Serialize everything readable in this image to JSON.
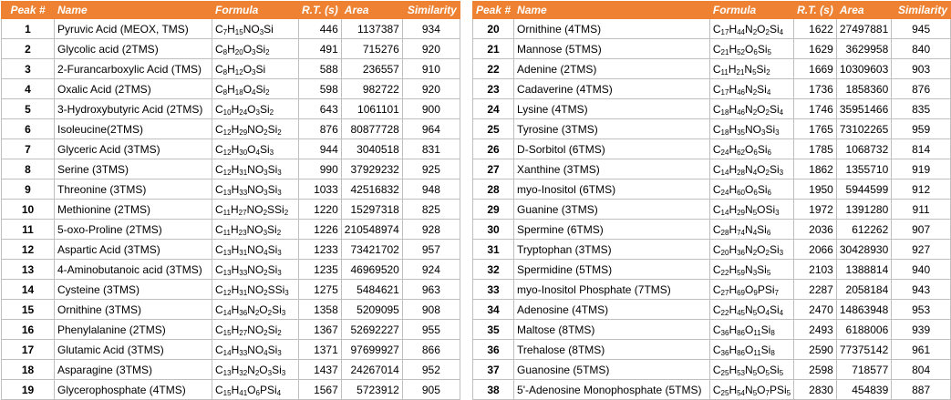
{
  "headers": [
    "Peak #",
    "Name",
    "Formula",
    "R.T. (s)",
    "Area",
    "Similarity"
  ],
  "left_rows": [
    {
      "peak": "1",
      "name": "Pyruvic Acid (MEOX, TMS)",
      "formula": "C7H15NO3Si",
      "rt": "446",
      "area": "1137387",
      "sim": "934"
    },
    {
      "peak": "2",
      "name": "Glycolic acid (2TMS)",
      "formula": "C8H20O3Si2",
      "rt": "491",
      "area": "715276",
      "sim": "920"
    },
    {
      "peak": "3",
      "name": "2-Furancarboxylic Acid (TMS)",
      "formula": "C8H12O3Si",
      "rt": "588",
      "area": "236557",
      "sim": "910"
    },
    {
      "peak": "4",
      "name": "Oxalic Acid (2TMS)",
      "formula": "C8H18O4Si2",
      "rt": "598",
      "area": "982722",
      "sim": "920"
    },
    {
      "peak": "5",
      "name": "3-Hydroxybutyric Acid (2TMS)",
      "formula": "C10H24O3Si2",
      "rt": "643",
      "area": "1061101",
      "sim": "900"
    },
    {
      "peak": "6",
      "name": "Isoleucine(2TMS)",
      "formula": "C12H29NO2Si2",
      "rt": "876",
      "area": "80877728",
      "sim": "964"
    },
    {
      "peak": "7",
      "name": "Glyceric Acid (3TMS)",
      "formula": "C12H30O4Si3",
      "rt": "944",
      "area": "3040518",
      "sim": "831"
    },
    {
      "peak": "8",
      "name": "Serine (3TMS)",
      "formula": "C12H31NO3Si3",
      "rt": "990",
      "area": "37929232",
      "sim": "925"
    },
    {
      "peak": "9",
      "name": "Threonine (3TMS)",
      "formula": "C13H33NO3Si3",
      "rt": "1033",
      "area": "42516832",
      "sim": "948"
    },
    {
      "peak": "10",
      "name": "Methionine (2TMS)",
      "formula": "C11H27NO2SSi2",
      "rt": "1220",
      "area": "15297318",
      "sim": "825"
    },
    {
      "peak": "11",
      "name": "5-oxo-Proline (2TMS)",
      "formula": "C11H23NO3Si2",
      "rt": "1226",
      "area": "210548974",
      "sim": "928"
    },
    {
      "peak": "12",
      "name": "Aspartic Acid (3TMS)",
      "formula": "C13H31NO4Si3",
      "rt": "1233",
      "area": "73421702",
      "sim": "957"
    },
    {
      "peak": "13",
      "name": "4-Aminobutanoic acid (3TMS)",
      "formula": "C13H33NO2Si3",
      "rt": "1235",
      "area": "46969520",
      "sim": "924"
    },
    {
      "peak": "14",
      "name": "Cysteine (3TMS)",
      "formula": "C12H31NO2SSi3",
      "rt": "1275",
      "area": "5484621",
      "sim": "963"
    },
    {
      "peak": "15",
      "name": "Ornithine (3TMS)",
      "formula": "C14H36N2O2Si3",
      "rt": "1358",
      "area": "5209095",
      "sim": "908"
    },
    {
      "peak": "16",
      "name": "Phenylalanine (2TMS)",
      "formula": "C15H27NO2Si2",
      "rt": "1367",
      "area": "52692227",
      "sim": "955"
    },
    {
      "peak": "17",
      "name": "Glutamic Acid (3TMS)",
      "formula": "C14H33NO4Si3",
      "rt": "1371",
      "area": "97699927",
      "sim": "866"
    },
    {
      "peak": "18",
      "name": "Asparagine (3TMS)",
      "formula": "C13H32N2O3Si3",
      "rt": "1437",
      "area": "24267014",
      "sim": "952"
    },
    {
      "peak": "19",
      "name": "Glycerophosphate (4TMS)",
      "formula": "C15H41O6PSi4",
      "rt": "1567",
      "area": "5723912",
      "sim": "905"
    }
  ],
  "right_rows": [
    {
      "peak": "20",
      "name": "Ornithine (4TMS)",
      "formula": "C17H44N2O2Si4",
      "rt": "1622",
      "area": "27497881",
      "sim": "945"
    },
    {
      "peak": "21",
      "name": "Mannose (5TMS)",
      "formula": "C21H52O6Si5",
      "rt": "1629",
      "area": "3629958",
      "sim": "840"
    },
    {
      "peak": "22",
      "name": "Adenine (2TMS)",
      "formula": "C11H21N5Si2",
      "rt": "1669",
      "area": "10309603",
      "sim": "903"
    },
    {
      "peak": "23",
      "name": "Cadaverine (4TMS)",
      "formula": "C17H46N2Si4",
      "rt": "1736",
      "area": "1858360",
      "sim": "876"
    },
    {
      "peak": "24",
      "name": "Lysine (4TMS)",
      "formula": "C18H46N2O2Si4",
      "rt": "1746",
      "area": "35951466",
      "sim": "835"
    },
    {
      "peak": "25",
      "name": "Tyrosine (3TMS)",
      "formula": "C18H35NO3Si3",
      "rt": "1765",
      "area": "73102265",
      "sim": "959"
    },
    {
      "peak": "26",
      "name": "D-Sorbitol (6TMS)",
      "formula": "C24H62O6Si6",
      "rt": "1785",
      "area": "1068732",
      "sim": "814"
    },
    {
      "peak": "27",
      "name": "Xanthine (3TMS)",
      "formula": "C14H28N4O2Si3",
      "rt": "1862",
      "area": "1355710",
      "sim": "919"
    },
    {
      "peak": "28",
      "name": "myo-Inositol (6TMS)",
      "formula": "C24H60O6Si6",
      "rt": "1950",
      "area": "5944599",
      "sim": "912"
    },
    {
      "peak": "29",
      "name": "Guanine (3TMS)",
      "formula": "C14H29N5OSi3",
      "rt": "1972",
      "area": "1391280",
      "sim": "911"
    },
    {
      "peak": "30",
      "name": "Spermine (6TMS)",
      "formula": "C28H74N4Si6",
      "rt": "2036",
      "area": "612262",
      "sim": "907"
    },
    {
      "peak": "31",
      "name": "Tryptophan (3TMS)",
      "formula": "C20H36N2O2Si3",
      "rt": "2066",
      "area": "30428930",
      "sim": "927"
    },
    {
      "peak": "32",
      "name": "Spermidine (5TMS)",
      "formula": "C22H59N3Si5",
      "rt": "2103",
      "area": "1388814",
      "sim": "940"
    },
    {
      "peak": "33",
      "name": "myo-Inositol Phosphate (7TMS)",
      "formula": "C27H69O9PSi7",
      "rt": "2287",
      "area": "2058184",
      "sim": "943"
    },
    {
      "peak": "34",
      "name": "Adenosine (4TMS)",
      "formula": "C22H45N5O4Si4",
      "rt": "2470",
      "area": "14863948",
      "sim": "953"
    },
    {
      "peak": "35",
      "name": "Maltose (8TMS)",
      "formula": "C36H86O11Si8",
      "rt": "2493",
      "area": "6188006",
      "sim": "939"
    },
    {
      "peak": "36",
      "name": "Trehalose (8TMS)",
      "formula": "C36H86O11Si8",
      "rt": "2590",
      "area": "77375142",
      "sim": "961"
    },
    {
      "peak": "37",
      "name": "Guanosine (5TMS)",
      "formula": "C25H53N5O5Si5",
      "rt": "2598",
      "area": "718577",
      "sim": "804"
    },
    {
      "peak": "38",
      "name": "5'-Adenosine Monophosphate (5TMS)",
      "formula": "C25H54N5O7PSi5",
      "rt": "2830",
      "area": "454839",
      "sim": "887"
    }
  ],
  "colors": {
    "header_bg": "#ee8232",
    "header_text": "#ffffff",
    "grid": "#bfbfbf"
  }
}
